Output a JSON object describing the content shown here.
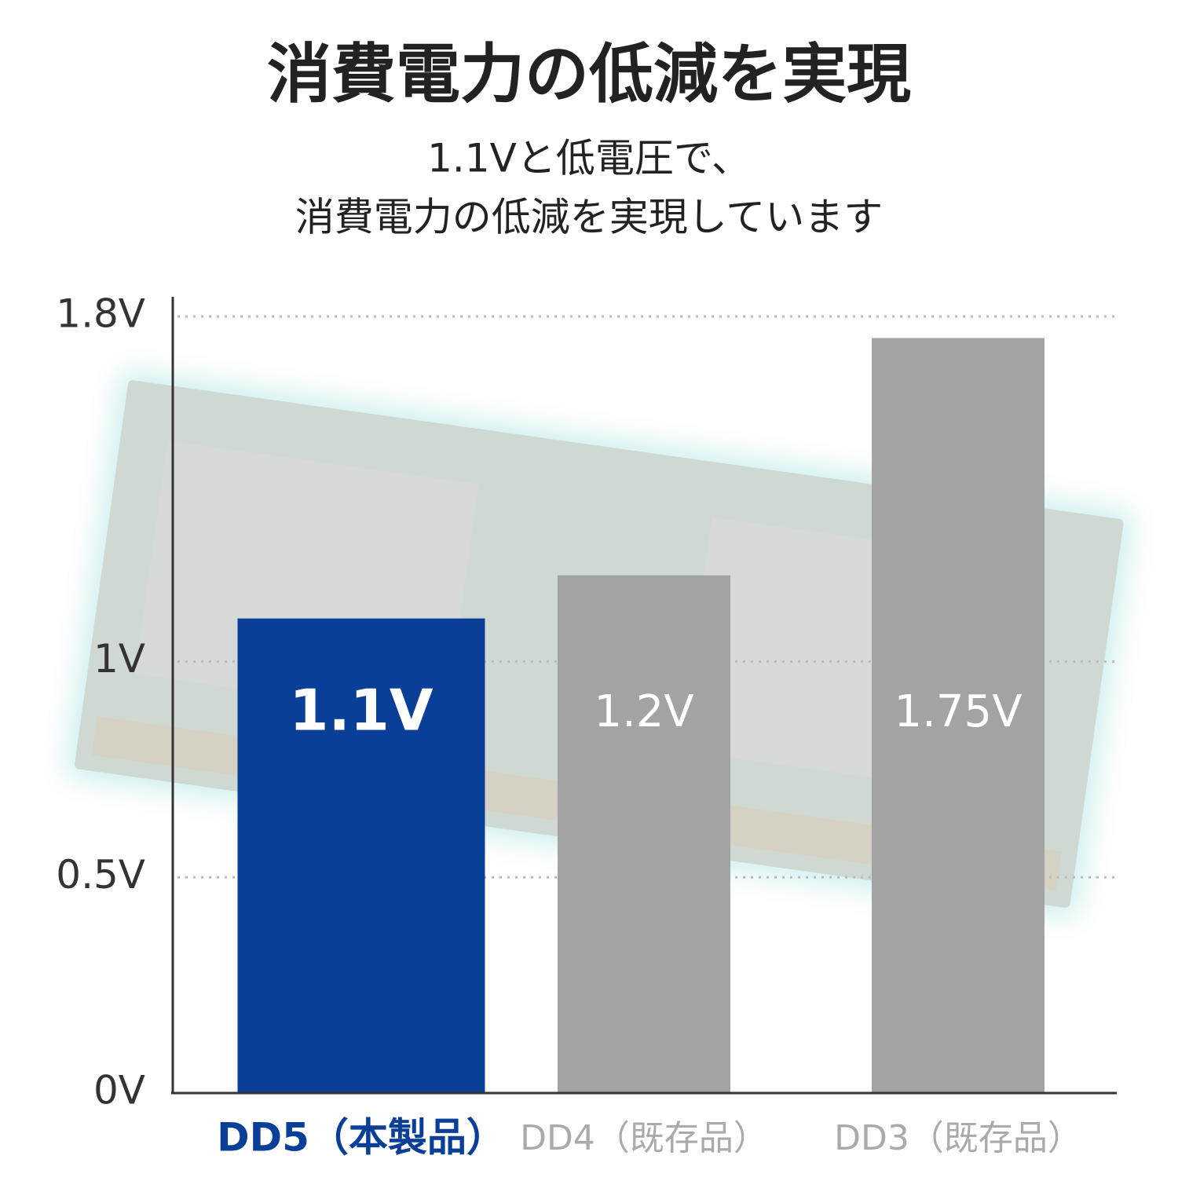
{
  "chart_data": {
    "type": "bar",
    "title": "消費電力の低減を実現",
    "subtitle": [
      "1.1Vと低電圧で、",
      "消費電力の低減を実現しています"
    ],
    "categories": [
      "DD5（本製品）",
      "DD4（既存品）",
      "DD3（既存品）"
    ],
    "values": [
      1.1,
      1.2,
      1.75
    ],
    "value_labels": [
      "1.1V",
      "1.2V",
      "1.75V"
    ],
    "colors": [
      "#0a3f98",
      "#a3a3a3",
      "#a3a3a3"
    ],
    "ylim": [
      0,
      1.8
    ],
    "yticks": [
      {
        "value": 0,
        "label": "0V"
      },
      {
        "value": 0.5,
        "label": "0.5V"
      },
      {
        "value": 1,
        "label": "1V"
      },
      {
        "value": 1.8,
        "label": "1.8V"
      }
    ],
    "grid": true
  }
}
